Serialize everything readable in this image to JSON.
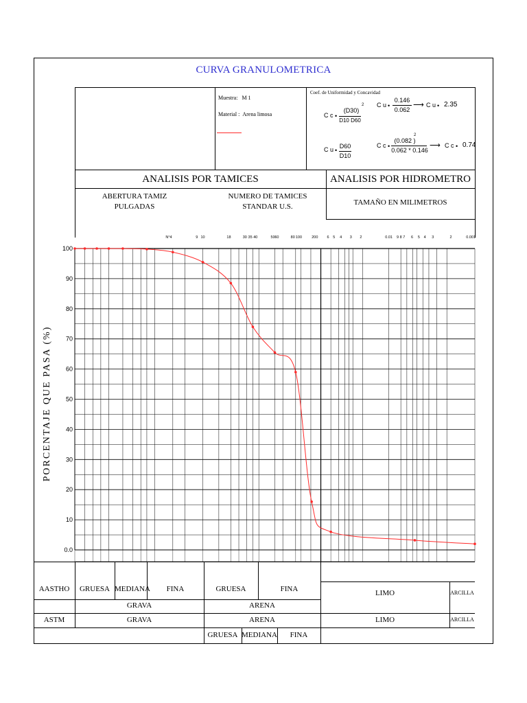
{
  "title": "CURVA GRANULOMETRICA",
  "sample": {
    "muestra_label": "Muestra:",
    "muestra_value": "M 1",
    "material_label": "Material :",
    "material_value": "Arena limosa",
    "coef_label": "Coef. de Uniformidad y Concavidad"
  },
  "formulas": {
    "cc_lhs": "C c",
    "cc_num": "(D30)",
    "cc_den": "D10  D60",
    "cu_lhs": "C u",
    "cu_num": "D60",
    "cu_den": "D10",
    "cu_calc_lhs": "C u",
    "cu_calc_num": "0.146",
    "cu_calc_den": "0.062",
    "cu_result_lhs": "C u",
    "cu_result": "2.35",
    "cc_calc_lhs": "C c",
    "cc_calc_num": "(0.082 )",
    "cc_calc_den": "0.062 *  0.146",
    "cc_result_lhs": "C c",
    "cc_result": "0.74",
    "exp": "2"
  },
  "headers": {
    "tamices": "ANALISIS POR TAMICES",
    "hidrometro": "ANALISIS POR HIDROMETRO",
    "abertura_line1": "ABERTURA TAMIZ",
    "abertura_line2": "PULGADAS",
    "numero_line1": "NUMERO DE TAMICES",
    "numero_line2": "STANDAR U.S.",
    "tamano": "TAMAÑO EN MILIMETROS"
  },
  "top_ticks": [
    "N°4",
    "9",
    "10",
    "18",
    "30",
    "35 40",
    "50",
    "60",
    "80",
    "100",
    "200",
    "6",
    "5",
    "4",
    "3",
    "2",
    "0.01",
    "9 8 7",
    "6",
    "5",
    "4",
    "3",
    "2",
    "0.001"
  ],
  "ylabel": "PORCENTAJE QUE PASA (%)",
  "classification": {
    "aastho": "AASTHO",
    "astm": "ASTM",
    "gruesa": "GRUESA",
    "mediana": "MEDIANA",
    "fina": "FINA",
    "grava": "GRAVA",
    "arena": "ARENA",
    "limo": "LIMO",
    "arcilla": "ARCILLA",
    "arena_gruesa": "GRUESA",
    "arena_fina": "FINA"
  },
  "colors": {
    "curve": "#ff2a2a",
    "title": "#2f2fd0",
    "grid": "#000000"
  },
  "chart_data": {
    "type": "line",
    "title": "CURVA GRANULOMETRICA",
    "ylabel": "PORCENTAJE QUE PASA (%)",
    "ylim": [
      0,
      100
    ],
    "yticks": [
      "0.0",
      "10",
      "20",
      "30",
      "40",
      "50",
      "60",
      "70",
      "80",
      "90",
      "100"
    ],
    "grid": true,
    "x_scale": "log (grain size, decreasing to the right)",
    "series": [
      {
        "points": [
          {
            "pos": 0.0,
            "y": 100
          },
          {
            "pos": 0.025,
            "y": 100
          },
          {
            "pos": 0.055,
            "y": 100
          },
          {
            "pos": 0.085,
            "y": 100
          },
          {
            "pos": 0.12,
            "y": 100
          },
          {
            "pos": 0.18,
            "y": 99.8
          },
          {
            "pos": 0.245,
            "y": 98.8
          },
          {
            "pos": 0.32,
            "y": 95.5
          },
          {
            "pos": 0.39,
            "y": 88.5
          },
          {
            "pos": 0.445,
            "y": 74
          },
          {
            "pos": 0.5,
            "y": 65.5
          },
          {
            "pos": 0.552,
            "y": 59
          },
          {
            "pos": 0.592,
            "y": 16
          },
          {
            "pos": 0.64,
            "y": 6
          },
          {
            "pos": 0.85,
            "y": 3.2
          },
          {
            "pos": 1.0,
            "y": 2
          }
        ]
      }
    ]
  }
}
